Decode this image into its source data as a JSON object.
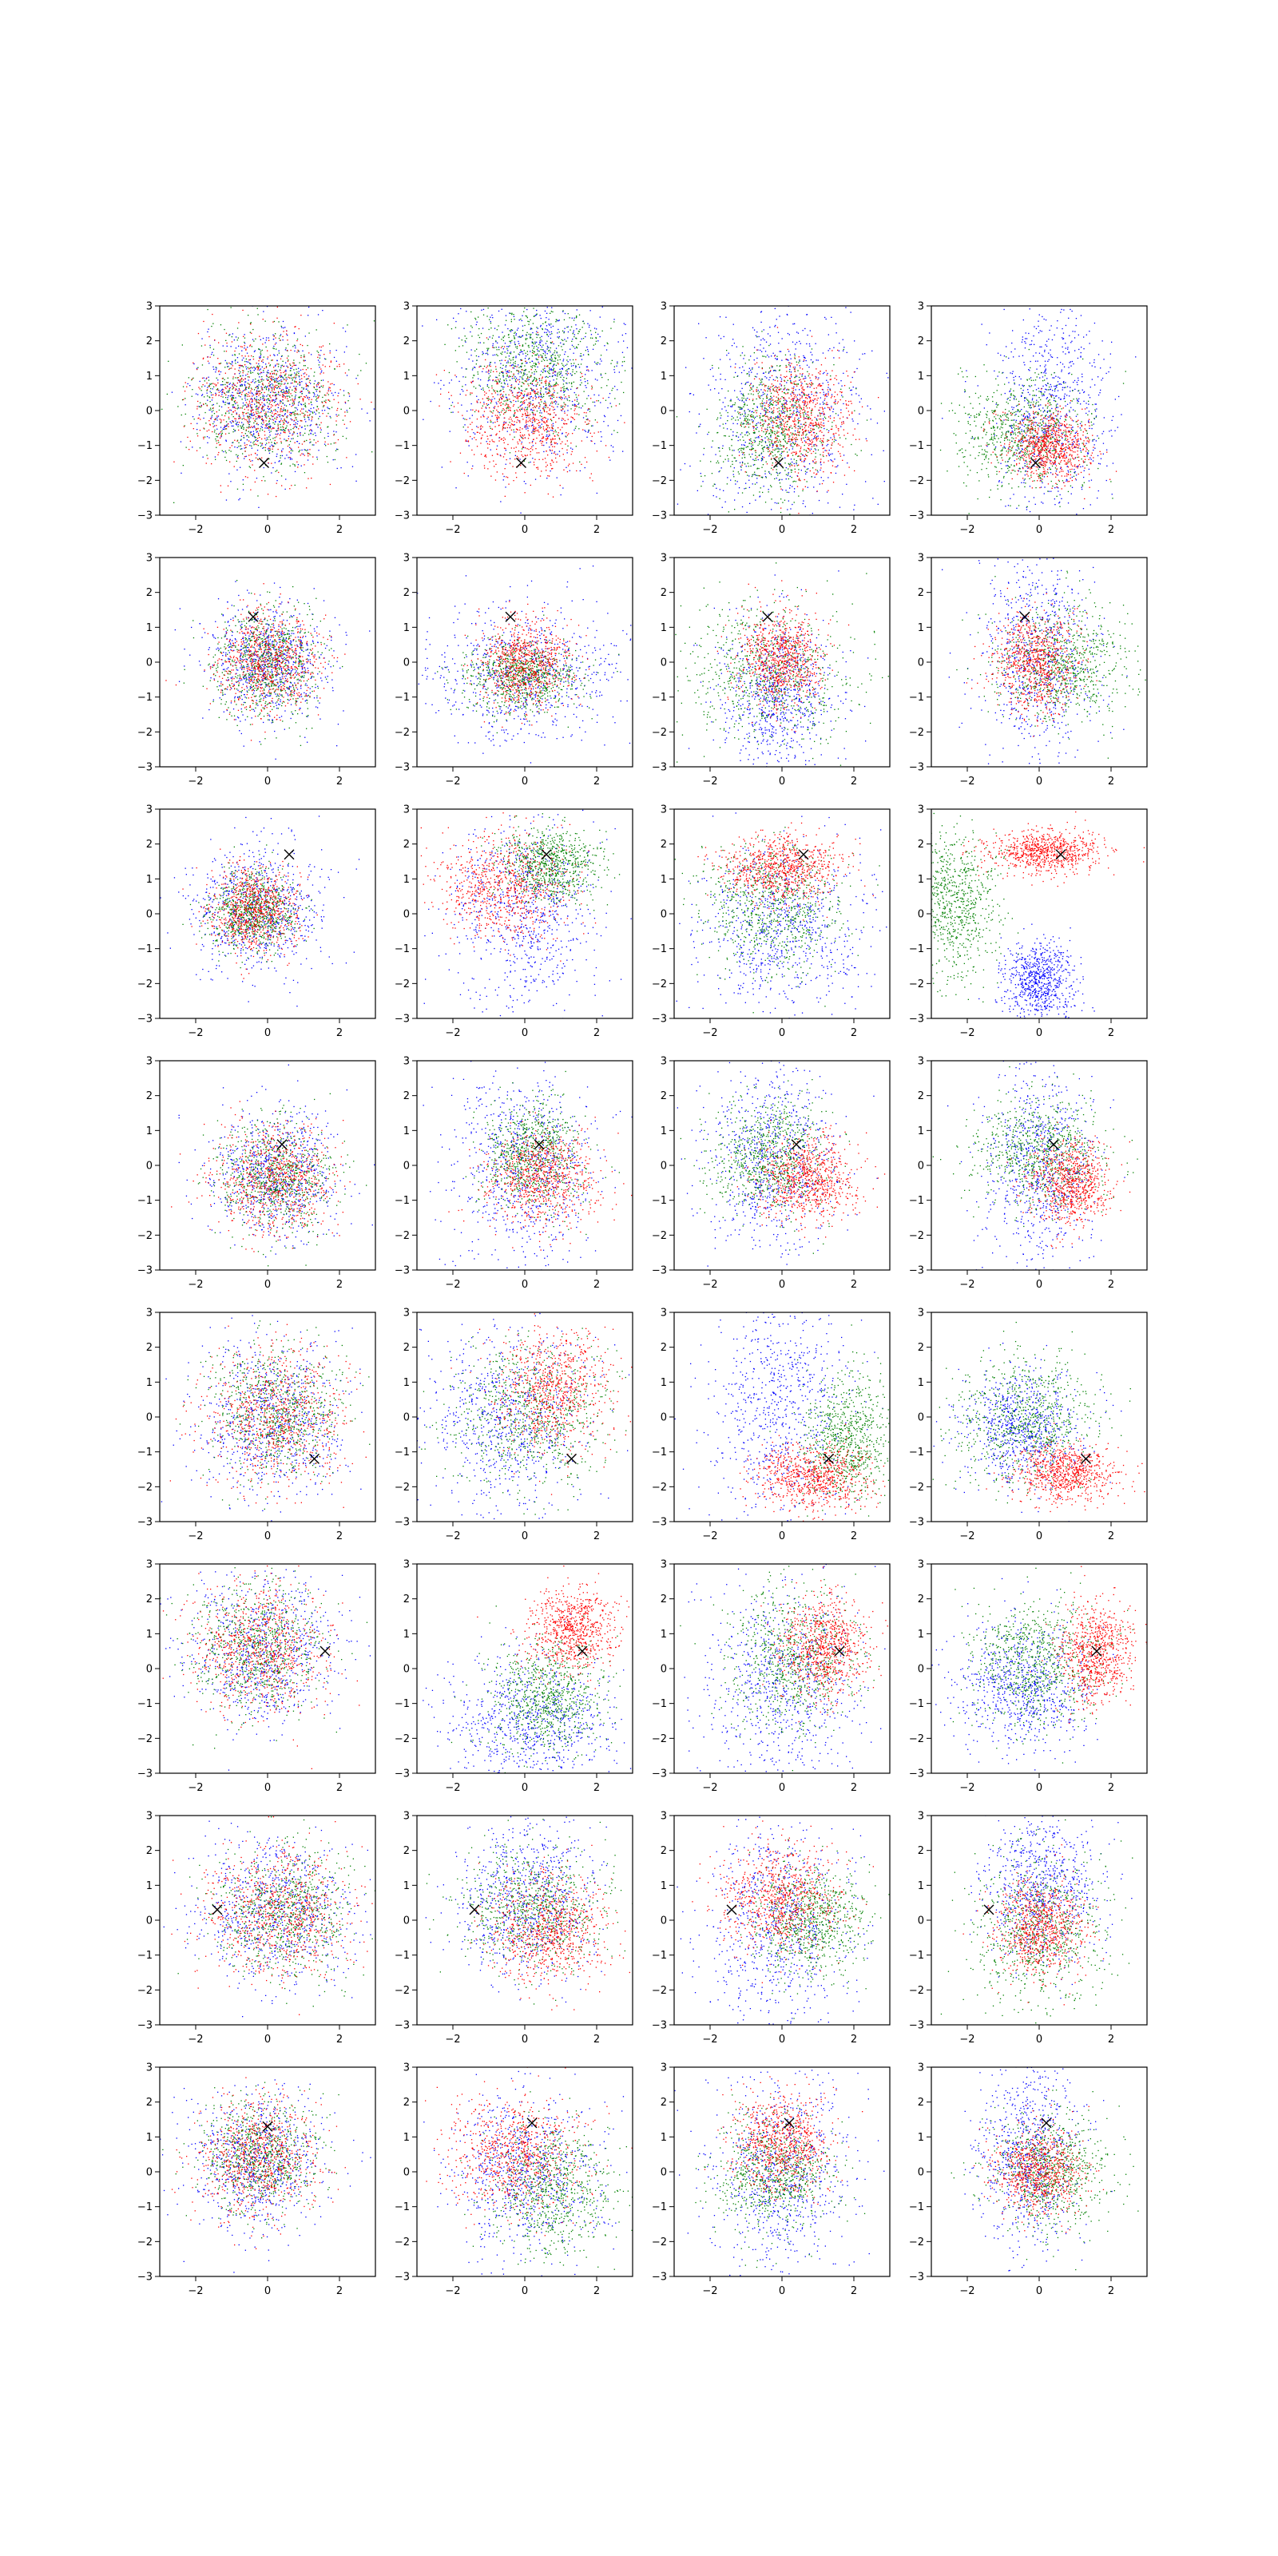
{
  "colors": {
    "blue": "#0000ff",
    "green": "#008000",
    "red": "#ff0000",
    "marker": "#000000"
  },
  "chart_data": {
    "type": "scatter",
    "rows": 8,
    "cols": 4,
    "xlim": [
      -3,
      3
    ],
    "ylim": [
      -3,
      3
    ],
    "xticks": [
      -2,
      0,
      2
    ],
    "yticks": [
      -3,
      -2,
      -1,
      0,
      1,
      2,
      3
    ],
    "grid": false,
    "legend": "none",
    "marker_symbol": "x",
    "series_colors": [
      "blue",
      "green",
      "red"
    ],
    "panels": [
      {
        "row": 0,
        "col": 0,
        "marker": [
          -0.1,
          -1.5
        ],
        "clusters": [
          {
            "color": "blue",
            "cx": 0.0,
            "cy": 0.3,
            "sx": 1.0,
            "sy": 1.0
          },
          {
            "color": "green",
            "cx": 0.0,
            "cy": 0.3,
            "sx": 1.0,
            "sy": 1.0
          },
          {
            "color": "red",
            "cx": 0.0,
            "cy": 0.3,
            "sx": 1.0,
            "sy": 1.0
          }
        ]
      },
      {
        "row": 0,
        "col": 1,
        "marker": [
          -0.1,
          -1.5
        ],
        "clusters": [
          {
            "color": "blue",
            "cx": 0.3,
            "cy": 1.0,
            "sx": 1.2,
            "sy": 1.4
          },
          {
            "color": "green",
            "cx": 0.3,
            "cy": 1.2,
            "sx": 1.0,
            "sy": 0.9
          },
          {
            "color": "red",
            "cx": 0.0,
            "cy": -0.3,
            "sx": 0.9,
            "sy": 0.8
          }
        ]
      },
      {
        "row": 0,
        "col": 2,
        "marker": [
          -0.1,
          -1.5
        ],
        "clusters": [
          {
            "color": "blue",
            "cx": 0.0,
            "cy": 0.0,
            "sx": 1.2,
            "sy": 1.6
          },
          {
            "color": "green",
            "cx": -0.3,
            "cy": -0.5,
            "sx": 0.8,
            "sy": 0.9
          },
          {
            "color": "red",
            "cx": 0.5,
            "cy": -0.2,
            "sx": 0.7,
            "sy": 0.8
          }
        ]
      },
      {
        "row": 0,
        "col": 3,
        "marker": [
          -0.1,
          -1.5
        ],
        "clusters": [
          {
            "color": "blue",
            "cx": 0.3,
            "cy": 0.0,
            "sx": 0.8,
            "sy": 1.5
          },
          {
            "color": "green",
            "cx": -0.5,
            "cy": -0.6,
            "sx": 0.9,
            "sy": 0.8
          },
          {
            "color": "red",
            "cx": 0.3,
            "cy": -1.0,
            "sx": 0.6,
            "sy": 0.5
          }
        ]
      },
      {
        "row": 1,
        "col": 0,
        "marker": [
          -0.4,
          1.3
        ],
        "clusters": [
          {
            "color": "blue",
            "cx": 0.0,
            "cy": 0.0,
            "sx": 0.8,
            "sy": 0.8
          },
          {
            "color": "green",
            "cx": 0.0,
            "cy": 0.0,
            "sx": 0.7,
            "sy": 0.8
          },
          {
            "color": "red",
            "cx": 0.0,
            "cy": 0.0,
            "sx": 0.7,
            "sy": 0.7
          }
        ]
      },
      {
        "row": 1,
        "col": 1,
        "marker": [
          -0.4,
          1.3
        ],
        "clusters": [
          {
            "color": "blue",
            "cx": 0.0,
            "cy": -0.3,
            "sx": 1.3,
            "sy": 1.0
          },
          {
            "color": "green",
            "cx": -0.1,
            "cy": -0.4,
            "sx": 0.8,
            "sy": 0.5
          },
          {
            "color": "red",
            "cx": 0.0,
            "cy": 0.0,
            "sx": 0.6,
            "sy": 0.6
          }
        ]
      },
      {
        "row": 1,
        "col": 2,
        "marker": [
          -0.4,
          1.3
        ],
        "clusters": [
          {
            "color": "blue",
            "cx": -0.1,
            "cy": -1.0,
            "sx": 0.8,
            "sy": 1.2
          },
          {
            "color": "green",
            "cx": -0.4,
            "cy": -0.3,
            "sx": 1.2,
            "sy": 1.0
          },
          {
            "color": "red",
            "cx": 0.0,
            "cy": 0.1,
            "sx": 0.6,
            "sy": 0.7
          }
        ]
      },
      {
        "row": 1,
        "col": 3,
        "marker": [
          -0.4,
          1.3
        ],
        "clusters": [
          {
            "color": "blue",
            "cx": 0.0,
            "cy": 0.2,
            "sx": 0.8,
            "sy": 1.5
          },
          {
            "color": "green",
            "cx": 0.7,
            "cy": 0.0,
            "sx": 0.9,
            "sy": 0.8
          },
          {
            "color": "red",
            "cx": -0.1,
            "cy": 0.0,
            "sx": 0.6,
            "sy": 0.7
          }
        ]
      },
      {
        "row": 2,
        "col": 0,
        "marker": [
          0.6,
          1.7
        ],
        "clusters": [
          {
            "color": "blue",
            "cx": -0.3,
            "cy": 0.2,
            "sx": 0.9,
            "sy": 0.9
          },
          {
            "color": "green",
            "cx": -0.4,
            "cy": 0.1,
            "sx": 0.6,
            "sy": 0.6
          },
          {
            "color": "red",
            "cx": -0.4,
            "cy": 0.1,
            "sx": 0.6,
            "sy": 0.6
          }
        ]
      },
      {
        "row": 2,
        "col": 1,
        "marker": [
          0.6,
          1.7
        ],
        "clusters": [
          {
            "color": "blue",
            "cx": 0.0,
            "cy": 0.0,
            "sx": 1.0,
            "sy": 1.3
          },
          {
            "color": "green",
            "cx": 0.7,
            "cy": 1.4,
            "sx": 0.7,
            "sy": 0.5
          },
          {
            "color": "red",
            "cx": -0.6,
            "cy": 0.8,
            "sx": 0.9,
            "sy": 0.7
          }
        ]
      },
      {
        "row": 2,
        "col": 2,
        "marker": [
          0.6,
          1.7
        ],
        "clusters": [
          {
            "color": "blue",
            "cx": 0.0,
            "cy": -0.4,
            "sx": 1.1,
            "sy": 1.2
          },
          {
            "color": "green",
            "cx": -0.3,
            "cy": 0.2,
            "sx": 1.0,
            "sy": 0.9
          },
          {
            "color": "red",
            "cx": 0.0,
            "cy": 1.3,
            "sx": 0.8,
            "sy": 0.45
          }
        ]
      },
      {
        "row": 2,
        "col": 3,
        "marker": [
          0.6,
          1.7
        ],
        "clusters": [
          {
            "color": "blue",
            "cx": 0.0,
            "cy": -2.0,
            "sx": 0.5,
            "sy": 0.6
          },
          {
            "color": "green",
            "cx": -2.4,
            "cy": 0.3,
            "sx": 0.6,
            "sy": 1.0
          },
          {
            "color": "red",
            "cx": 0.2,
            "cy": 1.8,
            "sx": 0.8,
            "sy": 0.3
          }
        ]
      },
      {
        "row": 3,
        "col": 0,
        "marker": [
          0.4,
          0.6
        ],
        "clusters": [
          {
            "color": "blue",
            "cx": 0.2,
            "cy": -0.3,
            "sx": 0.9,
            "sy": 0.9
          },
          {
            "color": "green",
            "cx": 0.2,
            "cy": -0.3,
            "sx": 0.8,
            "sy": 0.8
          },
          {
            "color": "red",
            "cx": 0.2,
            "cy": -0.4,
            "sx": 0.8,
            "sy": 0.8
          }
        ]
      },
      {
        "row": 3,
        "col": 1,
        "marker": [
          0.4,
          0.6
        ],
        "clusters": [
          {
            "color": "blue",
            "cx": 0.0,
            "cy": 0.0,
            "sx": 1.0,
            "sy": 1.4
          },
          {
            "color": "green",
            "cx": 0.2,
            "cy": 0.3,
            "sx": 0.7,
            "sy": 0.8
          },
          {
            "color": "red",
            "cx": 0.5,
            "cy": -0.4,
            "sx": 0.8,
            "sy": 0.7
          }
        ]
      },
      {
        "row": 3,
        "col": 2,
        "marker": [
          0.4,
          0.6
        ],
        "clusters": [
          {
            "color": "blue",
            "cx": -0.3,
            "cy": 0.3,
            "sx": 0.9,
            "sy": 1.4
          },
          {
            "color": "green",
            "cx": -0.3,
            "cy": 0.2,
            "sx": 0.8,
            "sy": 0.8
          },
          {
            "color": "red",
            "cx": 0.7,
            "cy": -0.4,
            "sx": 0.7,
            "sy": 0.6
          }
        ]
      },
      {
        "row": 3,
        "col": 3,
        "marker": [
          0.4,
          0.6
        ],
        "clusters": [
          {
            "color": "blue",
            "cx": 0.0,
            "cy": 0.0,
            "sx": 0.8,
            "sy": 1.5
          },
          {
            "color": "green",
            "cx": 0.0,
            "cy": 0.4,
            "sx": 0.9,
            "sy": 0.8
          },
          {
            "color": "red",
            "cx": 0.9,
            "cy": -0.5,
            "sx": 0.5,
            "sy": 0.6
          }
        ]
      },
      {
        "row": 4,
        "col": 0,
        "marker": [
          1.3,
          -1.2
        ],
        "clusters": [
          {
            "color": "blue",
            "cx": 0.1,
            "cy": -0.1,
            "sx": 1.0,
            "sy": 1.1
          },
          {
            "color": "green",
            "cx": 0.3,
            "cy": 0.1,
            "sx": 0.9,
            "sy": 0.9
          },
          {
            "color": "red",
            "cx": 0.2,
            "cy": 0.0,
            "sx": 1.0,
            "sy": 1.0
          }
        ]
      },
      {
        "row": 4,
        "col": 1,
        "marker": [
          1.3,
          -1.2
        ],
        "clusters": [
          {
            "color": "blue",
            "cx": -0.5,
            "cy": 0.0,
            "sx": 1.1,
            "sy": 1.3
          },
          {
            "color": "green",
            "cx": 0.2,
            "cy": 0.1,
            "sx": 1.1,
            "sy": 1.0
          },
          {
            "color": "red",
            "cx": 0.8,
            "cy": 0.8,
            "sx": 0.8,
            "sy": 0.9
          }
        ]
      },
      {
        "row": 4,
        "col": 2,
        "marker": [
          1.3,
          -1.2
        ],
        "clusters": [
          {
            "color": "blue",
            "cx": 0.0,
            "cy": 0.2,
            "sx": 1.0,
            "sy": 1.7
          },
          {
            "color": "green",
            "cx": 1.8,
            "cy": -0.6,
            "sx": 0.6,
            "sy": 0.9
          },
          {
            "color": "red",
            "cx": 0.9,
            "cy": -1.7,
            "sx": 0.8,
            "sy": 0.45
          }
        ]
      },
      {
        "row": 4,
        "col": 3,
        "marker": [
          1.3,
          -1.2
        ],
        "clusters": [
          {
            "color": "blue",
            "cx": -0.5,
            "cy": -0.3,
            "sx": 0.8,
            "sy": 0.8
          },
          {
            "color": "green",
            "cx": -0.4,
            "cy": -0.1,
            "sx": 1.0,
            "sy": 0.9
          },
          {
            "color": "red",
            "cx": 0.7,
            "cy": -1.6,
            "sx": 0.7,
            "sy": 0.4
          }
        ]
      },
      {
        "row": 5,
        "col": 0,
        "marker": [
          1.6,
          0.5
        ],
        "clusters": [
          {
            "color": "blue",
            "cx": -0.1,
            "cy": 0.5,
            "sx": 1.1,
            "sy": 1.1
          },
          {
            "color": "green",
            "cx": -0.3,
            "cy": 0.6,
            "sx": 0.9,
            "sy": 0.9
          },
          {
            "color": "red",
            "cx": -0.2,
            "cy": 0.6,
            "sx": 0.9,
            "sy": 0.9
          }
        ]
      },
      {
        "row": 5,
        "col": 1,
        "marker": [
          1.6,
          0.5
        ],
        "clusters": [
          {
            "color": "blue",
            "cx": 0.2,
            "cy": -1.5,
            "sx": 1.2,
            "sy": 0.9
          },
          {
            "color": "green",
            "cx": 0.6,
            "cy": -0.8,
            "sx": 0.8,
            "sy": 0.8
          },
          {
            "color": "red",
            "cx": 1.3,
            "cy": 1.1,
            "sx": 0.6,
            "sy": 0.6
          }
        ]
      },
      {
        "row": 5,
        "col": 2,
        "marker": [
          1.6,
          0.5
        ],
        "clusters": [
          {
            "color": "blue",
            "cx": 0.0,
            "cy": -0.5,
            "sx": 1.1,
            "sy": 1.5
          },
          {
            "color": "green",
            "cx": 0.3,
            "cy": 0.3,
            "sx": 0.9,
            "sy": 1.0
          },
          {
            "color": "red",
            "cx": 1.2,
            "cy": 0.6,
            "sx": 0.6,
            "sy": 0.7
          }
        ]
      },
      {
        "row": 5,
        "col": 3,
        "marker": [
          1.6,
          0.5
        ],
        "clusters": [
          {
            "color": "blue",
            "cx": -0.5,
            "cy": -0.5,
            "sx": 1.0,
            "sy": 0.9
          },
          {
            "color": "green",
            "cx": -0.1,
            "cy": 0.2,
            "sx": 0.9,
            "sy": 0.9
          },
          {
            "color": "red",
            "cx": 1.6,
            "cy": 0.4,
            "sx": 0.5,
            "sy": 0.7
          }
        ]
      },
      {
        "row": 6,
        "col": 0,
        "marker": [
          -1.4,
          0.3
        ],
        "clusters": [
          {
            "color": "blue",
            "cx": 0.2,
            "cy": 0.3,
            "sx": 1.1,
            "sy": 1.0
          },
          {
            "color": "green",
            "cx": 0.5,
            "cy": 0.2,
            "sx": 1.0,
            "sy": 0.9
          },
          {
            "color": "red",
            "cx": 0.3,
            "cy": 0.2,
            "sx": 1.0,
            "sy": 0.9
          }
        ]
      },
      {
        "row": 6,
        "col": 1,
        "marker": [
          -1.4,
          0.3
        ],
        "clusters": [
          {
            "color": "blue",
            "cx": 0.0,
            "cy": 0.6,
            "sx": 1.0,
            "sy": 1.1
          },
          {
            "color": "green",
            "cx": 0.2,
            "cy": 0.3,
            "sx": 1.0,
            "sy": 0.9
          },
          {
            "color": "red",
            "cx": 0.7,
            "cy": -0.3,
            "sx": 0.8,
            "sy": 0.8
          }
        ]
      },
      {
        "row": 6,
        "col": 2,
        "marker": [
          -1.4,
          0.3
        ],
        "clusters": [
          {
            "color": "blue",
            "cx": -0.1,
            "cy": -0.2,
            "sx": 1.0,
            "sy": 1.6
          },
          {
            "color": "green",
            "cx": 0.8,
            "cy": 0.0,
            "sx": 0.8,
            "sy": 0.8
          },
          {
            "color": "red",
            "cx": 0.0,
            "cy": 0.6,
            "sx": 0.8,
            "sy": 0.8
          }
        ]
      },
      {
        "row": 6,
        "col": 3,
        "marker": [
          -1.4,
          0.3
        ],
        "clusters": [
          {
            "color": "blue",
            "cx": 0.1,
            "cy": 1.0,
            "sx": 0.8,
            "sy": 1.1
          },
          {
            "color": "green",
            "cx": 0.0,
            "cy": -0.3,
            "sx": 0.9,
            "sy": 1.1
          },
          {
            "color": "red",
            "cx": 0.0,
            "cy": -0.2,
            "sx": 0.6,
            "sy": 0.7
          }
        ]
      },
      {
        "row": 7,
        "col": 0,
        "marker": [
          0.0,
          1.3
        ],
        "clusters": [
          {
            "color": "blue",
            "cx": -0.3,
            "cy": 0.3,
            "sx": 0.9,
            "sy": 0.9
          },
          {
            "color": "green",
            "cx": -0.2,
            "cy": 0.5,
            "sx": 0.8,
            "sy": 0.8
          },
          {
            "color": "red",
            "cx": -0.3,
            "cy": 0.4,
            "sx": 0.8,
            "sy": 0.8
          }
        ]
      },
      {
        "row": 7,
        "col": 1,
        "marker": [
          0.2,
          1.4
        ],
        "clusters": [
          {
            "color": "blue",
            "cx": 0.0,
            "cy": 0.0,
            "sx": 1.0,
            "sy": 1.1
          },
          {
            "color": "green",
            "cx": 0.8,
            "cy": -0.5,
            "sx": 0.9,
            "sy": 0.9
          },
          {
            "color": "red",
            "cx": -0.3,
            "cy": 0.5,
            "sx": 0.9,
            "sy": 0.8
          }
        ]
      },
      {
        "row": 7,
        "col": 2,
        "marker": [
          0.2,
          1.4
        ],
        "clusters": [
          {
            "color": "blue",
            "cx": 0.0,
            "cy": 0.0,
            "sx": 1.0,
            "sy": 1.5
          },
          {
            "color": "green",
            "cx": -0.2,
            "cy": -0.1,
            "sx": 0.8,
            "sy": 0.8
          },
          {
            "color": "red",
            "cx": 0.0,
            "cy": 0.8,
            "sx": 0.7,
            "sy": 0.7
          }
        ]
      },
      {
        "row": 7,
        "col": 3,
        "marker": [
          0.2,
          1.4
        ],
        "clusters": [
          {
            "color": "blue",
            "cx": -0.2,
            "cy": 0.5,
            "sx": 0.7,
            "sy": 1.3
          },
          {
            "color": "green",
            "cx": 0.3,
            "cy": 0.0,
            "sx": 0.8,
            "sy": 0.8
          },
          {
            "color": "red",
            "cx": 0.0,
            "cy": 0.0,
            "sx": 0.6,
            "sy": 0.6
          }
        ]
      }
    ]
  }
}
